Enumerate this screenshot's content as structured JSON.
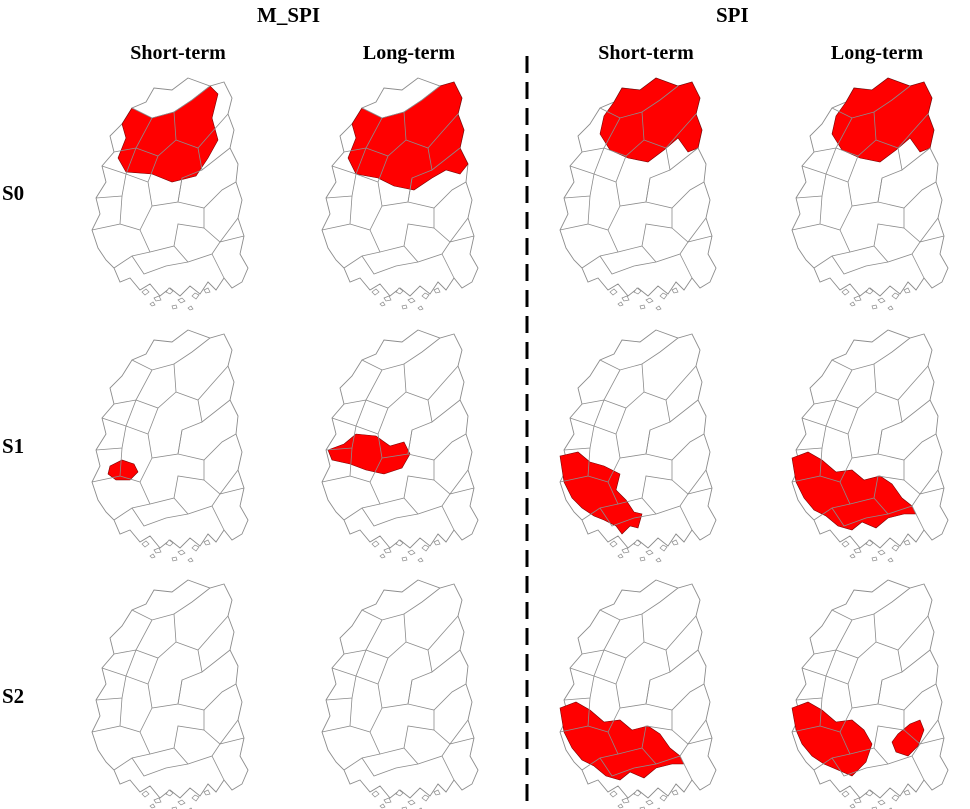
{
  "groups": {
    "m_spi": "M_SPI",
    "spi": "SPI"
  },
  "columns": {
    "m_spi_short": "Short-term",
    "m_spi_long": "Long-term",
    "spi_short": "Short-term",
    "spi_long": "Long-term"
  },
  "rows": {
    "s0": "S0",
    "s1": "S1",
    "s2": "S2"
  },
  "colors": {
    "highlight": "#ff0000",
    "boundary": "#8c8c8c",
    "text": "#000000"
  },
  "panels": [
    {
      "row": "s0",
      "column": "m_spi_short",
      "highlight": "north-central"
    },
    {
      "row": "s0",
      "column": "m_spi_long",
      "highlight": "north-northeast"
    },
    {
      "row": "s0",
      "column": "spi_short",
      "highlight": "north"
    },
    {
      "row": "s0",
      "column": "spi_long",
      "highlight": "north"
    },
    {
      "row": "s1",
      "column": "m_spi_short",
      "highlight": "small-west-central"
    },
    {
      "row": "s1",
      "column": "m_spi_long",
      "highlight": "west-central"
    },
    {
      "row": "s1",
      "column": "spi_short",
      "highlight": "southwest"
    },
    {
      "row": "s1",
      "column": "spi_long",
      "highlight": "south-southwest"
    },
    {
      "row": "s2",
      "column": "m_spi_short",
      "highlight": "none"
    },
    {
      "row": "s2",
      "column": "m_spi_long",
      "highlight": "none"
    },
    {
      "row": "s2",
      "column": "spi_short",
      "highlight": "south-southwest"
    },
    {
      "row": "s2",
      "column": "spi_long",
      "highlight": "southwest-and-southeast"
    }
  ]
}
